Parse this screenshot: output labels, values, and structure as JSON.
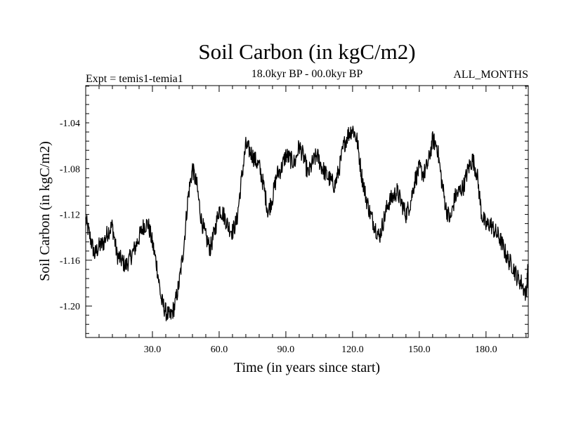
{
  "chart_data": {
    "type": "line",
    "title": "Soil Carbon (in kgC/m2)",
    "subtitle_left": "Expt = temis1-temia1",
    "subtitle_center": "18.0kyr BP - 00.0kyr BP",
    "subtitle_right": "ALL_MONTHS",
    "xlabel": "Time (in years since start)",
    "ylabel": "Soil Carbon (in kgC/m2)",
    "xlim": [
      0,
      199
    ],
    "ylim": [
      -1.2275,
      -1.0075
    ],
    "x_ticks": [
      30.0,
      60.0,
      90.0,
      120.0,
      150.0,
      180.0
    ],
    "x_tick_labels": [
      "30.0",
      "60.0",
      "90.0",
      "120.0",
      "150.0",
      "180.0"
    ],
    "y_ticks": [
      -1.04,
      -1.08,
      -1.12,
      -1.16,
      -1.2
    ],
    "y_tick_labels": [
      "-1.04",
      "-1.08",
      "-1.12",
      "-1.16",
      "-1.20"
    ],
    "series": [
      {
        "name": "Soil Carbon",
        "color": "#000000",
        "x": [
          0,
          2,
          4,
          6,
          8,
          10,
          12,
          14,
          16,
          18,
          20,
          22,
          24,
          26,
          28,
          30,
          32,
          34,
          36,
          38,
          40,
          42,
          44,
          46,
          48,
          50,
          52,
          54,
          56,
          58,
          60,
          62,
          64,
          66,
          68,
          70,
          72,
          74,
          76,
          78,
          80,
          82,
          84,
          86,
          88,
          90,
          92,
          94,
          96,
          98,
          100,
          102,
          104,
          106,
          108,
          110,
          112,
          114,
          116,
          118,
          120,
          122,
          124,
          126,
          128,
          130,
          132,
          134,
          136,
          138,
          140,
          142,
          144,
          146,
          148,
          150,
          152,
          154,
          156,
          158,
          160,
          162,
          164,
          166,
          168,
          170,
          172,
          174,
          176,
          178,
          180,
          182,
          184,
          186,
          188,
          190,
          192,
          194,
          196,
          198,
          199
        ],
        "values": [
          -1.125,
          -1.14,
          -1.155,
          -1.148,
          -1.145,
          -1.135,
          -1.13,
          -1.155,
          -1.16,
          -1.165,
          -1.158,
          -1.15,
          -1.14,
          -1.13,
          -1.128,
          -1.145,
          -1.165,
          -1.195,
          -1.205,
          -1.21,
          -1.2,
          -1.18,
          -1.15,
          -1.105,
          -1.08,
          -1.095,
          -1.125,
          -1.14,
          -1.15,
          -1.135,
          -1.115,
          -1.12,
          -1.13,
          -1.135,
          -1.125,
          -1.09,
          -1.06,
          -1.065,
          -1.072,
          -1.078,
          -1.095,
          -1.118,
          -1.105,
          -1.085,
          -1.08,
          -1.068,
          -1.072,
          -1.075,
          -1.06,
          -1.07,
          -1.085,
          -1.075,
          -1.068,
          -1.078,
          -1.085,
          -1.09,
          -1.095,
          -1.08,
          -1.06,
          -1.05,
          -1.045,
          -1.055,
          -1.085,
          -1.105,
          -1.12,
          -1.13,
          -1.14,
          -1.125,
          -1.11,
          -1.105,
          -1.1,
          -1.11,
          -1.12,
          -1.11,
          -1.09,
          -1.08,
          -1.085,
          -1.075,
          -1.055,
          -1.06,
          -1.09,
          -1.115,
          -1.125,
          -1.105,
          -1.1,
          -1.095,
          -1.08,
          -1.072,
          -1.085,
          -1.12,
          -1.13,
          -1.128,
          -1.135,
          -1.14,
          -1.15,
          -1.16,
          -1.165,
          -1.175,
          -1.18,
          -1.19,
          -1.165
        ]
      }
    ]
  }
}
